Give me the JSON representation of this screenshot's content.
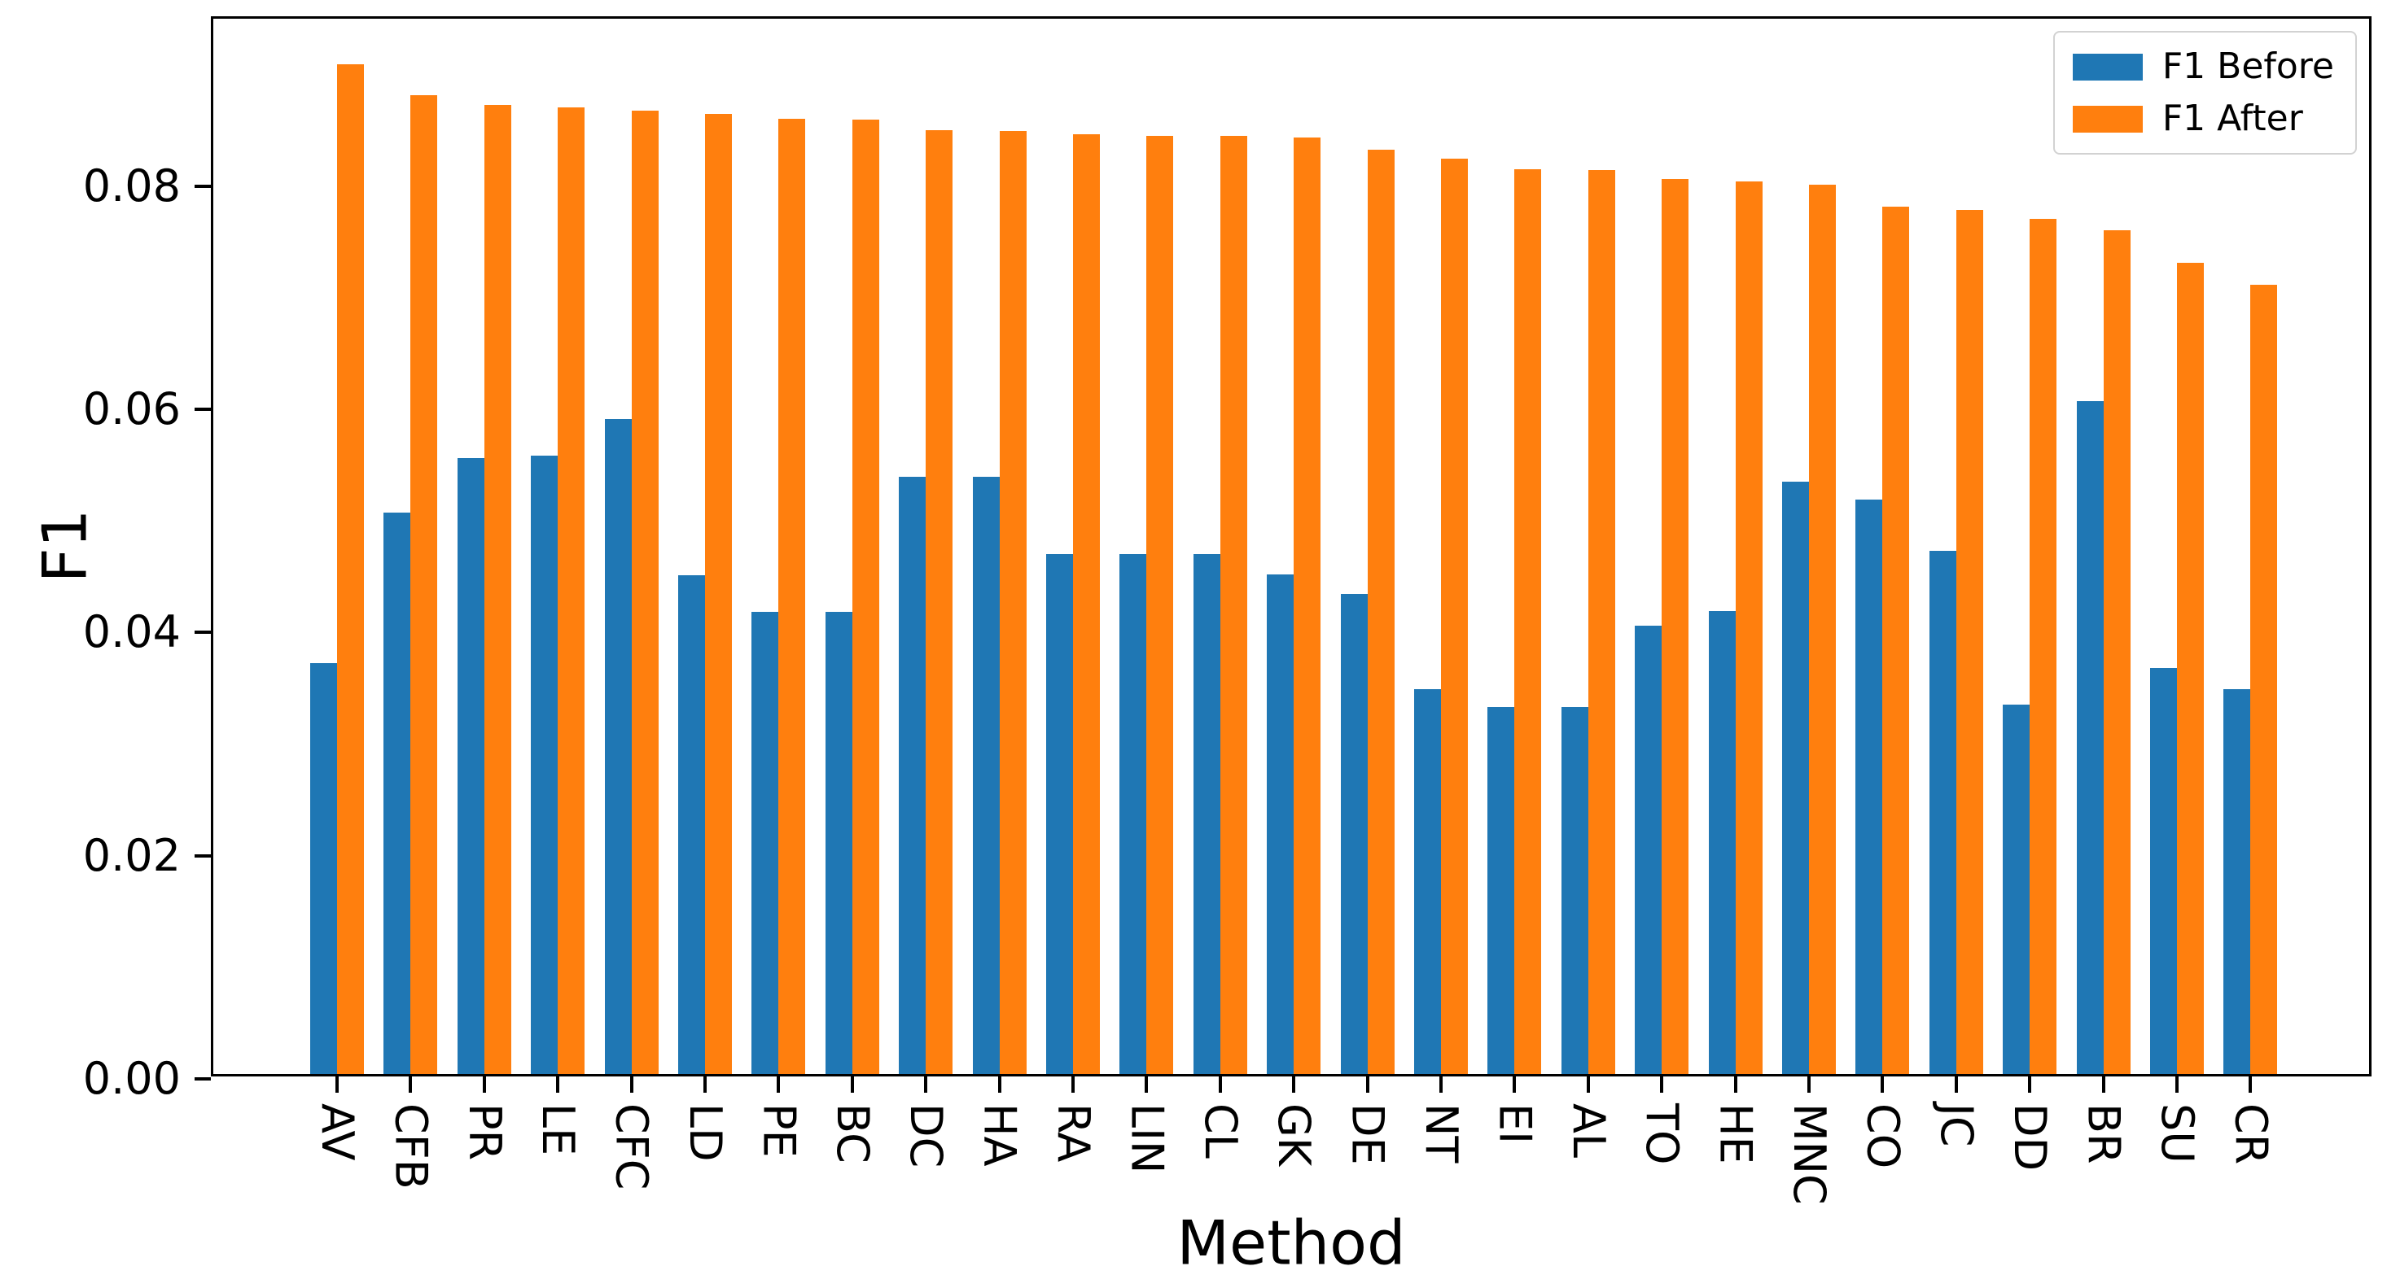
{
  "figure": {
    "background": "#ffffff",
    "axis_color": "#000000"
  },
  "chart_data": {
    "type": "bar",
    "title": "",
    "xlabel": "Method",
    "ylabel": "F1",
    "categories": [
      "AV",
      "CFB",
      "PR",
      "LE",
      "CFC",
      "LD",
      "PE",
      "BC",
      "DC",
      "HA",
      "RA",
      "LIN",
      "CL",
      "GK",
      "DE",
      "NT",
      "EI",
      "AL",
      "TO",
      "HE",
      "MNC",
      "CO",
      "JC",
      "DD",
      "BR",
      "SU",
      "CR"
    ],
    "series": [
      {
        "name": "F1 Before",
        "color": "#1f77b4",
        "values": [
          0.0368,
          0.0503,
          0.0552,
          0.0554,
          0.0587,
          0.0447,
          0.0414,
          0.0414,
          0.0535,
          0.0535,
          0.0466,
          0.0466,
          0.0466,
          0.0448,
          0.043,
          0.0345,
          0.0329,
          0.0329,
          0.0402,
          0.0415,
          0.0531,
          0.0515,
          0.0469,
          0.0331,
          0.0603,
          0.0364,
          0.0345
        ]
      },
      {
        "name": "F1 After",
        "color": "#ff7f0e",
        "values": [
          0.0905,
          0.0877,
          0.0868,
          0.0866,
          0.0863,
          0.086,
          0.0856,
          0.0855,
          0.0846,
          0.0845,
          0.0842,
          0.0841,
          0.0841,
          0.0839,
          0.0828,
          0.082,
          0.0811,
          0.081,
          0.0802,
          0.08,
          0.0797,
          0.0777,
          0.0774,
          0.0766,
          0.0756,
          0.0727,
          0.0707
        ]
      }
    ],
    "ylim": [
      0,
      0.095
    ],
    "yticks": [
      {
        "value": 0.0,
        "label": "0.00"
      },
      {
        "value": 0.02,
        "label": "0.02"
      },
      {
        "value": 0.04,
        "label": "0.04"
      },
      {
        "value": 0.06,
        "label": "0.06"
      },
      {
        "value": 0.08,
        "label": "0.08"
      }
    ],
    "legend": {
      "position": "upper-right"
    },
    "grid": false
  }
}
